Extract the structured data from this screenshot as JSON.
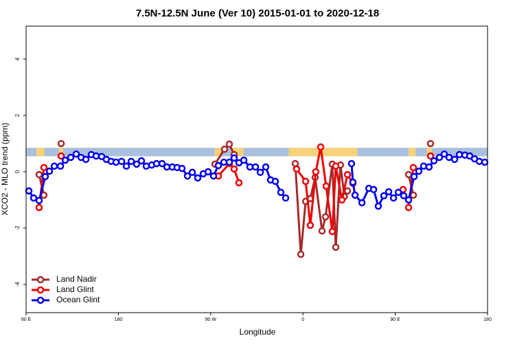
{
  "chart_data": {
    "type": "line",
    "title": "7.5N-12.5N June (Ver 10)   2015-01-01 to 2020-12-18",
    "x_label": "Longitude",
    "y_label": "XCO2 - MLO trend (ppm)",
    "xlim": [
      90,
      540
    ],
    "ylim": [
      -5,
      5.17
    ],
    "xticks": [
      {
        "value": 90,
        "label": "90 E"
      },
      {
        "value": 180,
        "label": "180"
      },
      {
        "value": 270,
        "label": "90 W"
      },
      {
        "value": 360,
        "label": "0"
      },
      {
        "value": 450,
        "label": "90 E"
      },
      {
        "value": 540,
        "label": "180"
      }
    ],
    "yticks": [
      -4,
      -2,
      0,
      2,
      4
    ],
    "legend": "bottom-left",
    "map_strip": {
      "ylim": [
        0.55,
        0.85
      ],
      "ocean_color": "#a9c0de",
      "land_color": "#f8d27a",
      "land_x": [
        [
          100,
          108
        ],
        [
          122,
          126
        ],
        [
          274,
          280
        ],
        [
          290,
          302
        ],
        [
          346,
          413
        ],
        [
          463,
          470
        ],
        [
          481,
          486
        ]
      ]
    },
    "series": [
      {
        "name": "Land Nadir",
        "color": "#a52a2a",
        "x": [
          102.7,
          107.4,
          null,
          124.2,
          null,
          274.2,
          283.5,
          288.2,
          292.9,
          null,
          352.5,
          357.9,
          362.6,
          367.2,
          371.9,
          378.6,
          382.0,
          388.6,
          392.0,
          396.6,
          400.4,
          403.4,
          null,
          463.0,
          467.7,
          null,
          484.4
        ],
        "values": [
          -0.1,
          -0.83,
          null,
          1.0,
          null,
          0.27,
          0.8,
          0.98,
          0.61,
          null,
          0.29,
          -2.93,
          -1.05,
          -0.95,
          -0.2,
          -2.1,
          -1.6,
          0.27,
          -2.68,
          0.24,
          -0.88,
          -0.68,
          null,
          -0.1,
          -0.83,
          null,
          1.0
        ]
      },
      {
        "name": "Land Glint",
        "color": "#ee0000",
        "x": [
          102.7,
          107.4,
          null,
          124.2,
          null,
          277.5,
          288.2,
          292.9,
          297.6,
          null,
          353.8,
          362.6,
          367.2,
          372.5,
          377.3,
          382.6,
          388.6,
          392.0,
          398.0,
          403.4,
          408.7,
          null,
          457.6,
          null,
          463.0,
          467.7,
          null,
          484.4
        ],
        "values": [
          -1.27,
          0.15,
          null,
          0.56,
          null,
          -0.15,
          0.29,
          0.1,
          -0.39,
          null,
          0.1,
          -0.34,
          -1.9,
          0.0,
          0.88,
          -0.51,
          -2.12,
          0.2,
          -1.0,
          -0.1,
          -0.41,
          null,
          -0.63,
          null,
          -1.27,
          0.15,
          null,
          0.56
        ]
      },
      {
        "name": "Ocean Glint",
        "color": "#0000ee",
        "x": [
          92.7,
          97.4,
          102.7,
          108.7,
          112.8,
          117.5,
          123.5,
          128.2,
          133.5,
          138.9,
          143.6,
          148.3,
          153.6,
          158.3,
          163.7,
          168.3,
          173.0,
          177.7,
          183.1,
          187.8,
          192.5,
          197.8,
          202.5,
          207.2,
          212.5,
          217.2,
          222.6,
          227.3,
          232.6,
          237.3,
          242.0,
          247.4,
          252.1,
          257.4,
          262.8,
          267.5,
          272.8,
          277.5,
          282.9,
          288.2,
          292.9,
          297.6,
          302.3,
          308.3,
          313.7,
          318.4,
          323.7,
          328.4,
          333.1,
          338.4,
          343.1,
          null,
          407.4,
          408.7,
          410.8,
          417.5,
          424.2,
          428.9,
          433.5,
          438.9,
          443.6,
          448.3,
          453.0,
          458.3,
          463.0,
          468.4,
          473.0,
          477.7,
          483.0,
          487.8,
          493.1,
          497.8,
          502.5,
          507.9,
          512.6,
          517.9,
          522.6,
          527.3,
          532.0,
          537.3
        ],
        "values": [
          -0.68,
          -0.93,
          -1.02,
          -0.17,
          0.02,
          0.2,
          0.2,
          0.41,
          0.51,
          0.63,
          0.51,
          0.44,
          0.61,
          0.56,
          0.54,
          0.44,
          0.37,
          0.34,
          0.37,
          0.2,
          0.37,
          0.27,
          0.39,
          0.2,
          0.24,
          0.29,
          0.29,
          0.17,
          0.17,
          0.15,
          0.12,
          -0.15,
          -0.02,
          -0.22,
          -0.07,
          0.0,
          -0.15,
          0.22,
          0.34,
          0.34,
          0.49,
          0.32,
          0.41,
          0.17,
          0.17,
          -0.02,
          0.17,
          -0.29,
          -0.34,
          -0.73,
          -0.93,
          null,
          0.29,
          -0.37,
          -0.83,
          -1.1,
          -0.59,
          -0.63,
          -1.22,
          -0.85,
          -0.71,
          -0.93,
          -0.73,
          -0.85,
          -1.0,
          -0.17,
          0.02,
          0.2,
          0.17,
          0.39,
          0.51,
          0.63,
          0.51,
          0.44,
          0.61,
          0.59,
          0.56,
          0.46,
          0.37,
          0.34
        ]
      }
    ]
  }
}
